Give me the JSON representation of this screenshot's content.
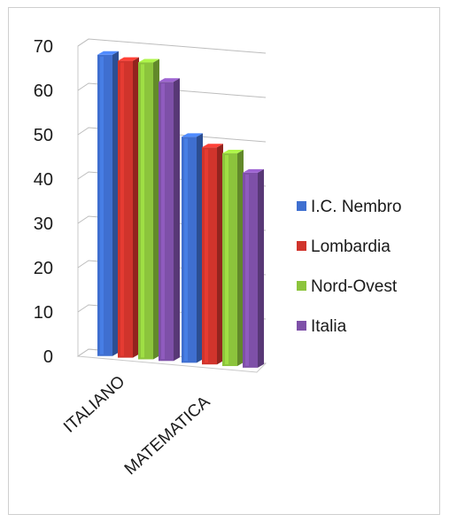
{
  "chart_data": {
    "type": "bar",
    "style": "3d-clustered-column",
    "categories": [
      "ITALIANO",
      "MATEMATICA"
    ],
    "series": [
      {
        "name": "I.C. Nembro",
        "values": [
          68,
          51
        ],
        "color": "#3f6fd0"
      },
      {
        "name": "Lombardia",
        "values": [
          67,
          49
        ],
        "color": "#d0342c"
      },
      {
        "name": "Nord-Ovest",
        "values": [
          67,
          48
        ],
        "color": "#8cc43c"
      },
      {
        "name": "Italia",
        "values": [
          63,
          44
        ],
        "color": "#7e50a8"
      }
    ],
    "yticks": [
      0,
      10,
      20,
      30,
      40,
      50,
      60,
      70
    ],
    "ylim": [
      0,
      70
    ],
    "title": "",
    "xlabel": "",
    "ylabel": "",
    "grid": true,
    "legend": "right"
  }
}
